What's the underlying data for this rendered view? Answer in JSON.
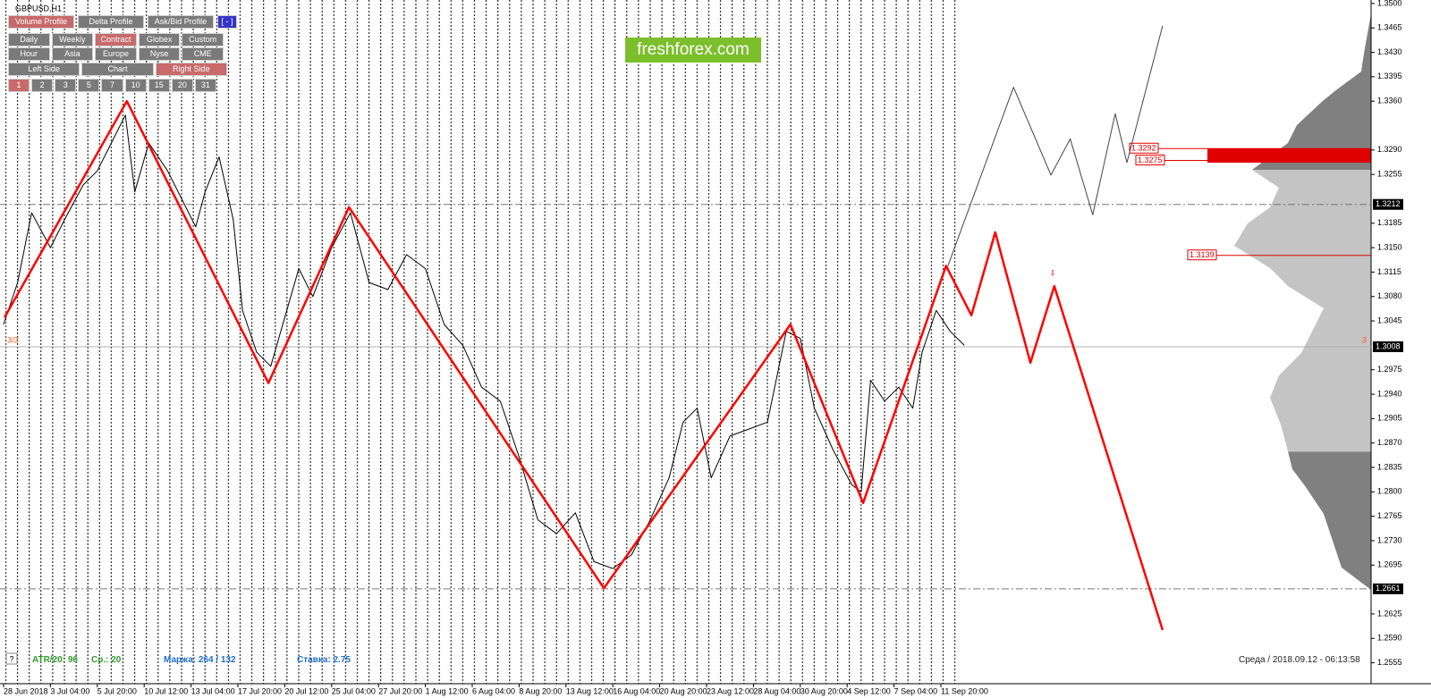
{
  "window": {
    "title": "GBPUSD,H1",
    "watermark": "freshforex.com"
  },
  "toolbar": {
    "rows": [
      [
        {
          "label": "Volume Profile",
          "active": true
        },
        {
          "label": "Delta Profile"
        },
        {
          "label": "Ask/Bid Profile"
        },
        {
          "label": "[ - ]"
        }
      ],
      [
        {
          "label": "Daily"
        },
        {
          "label": "Weekly"
        },
        {
          "label": "Contract",
          "active": true
        },
        {
          "label": "Globex"
        },
        {
          "label": "Custom"
        }
      ],
      [
        {
          "label": "Hour"
        },
        {
          "label": "Asia"
        },
        {
          "label": "Europe"
        },
        {
          "label": "Nyse"
        },
        {
          "label": "CME"
        }
      ],
      [
        {
          "label": "Left Side"
        },
        {
          "label": "Chart"
        },
        {
          "label": "Right Side",
          "active": true
        }
      ],
      [
        {
          "label": "1",
          "active": true
        },
        {
          "label": "2"
        },
        {
          "label": "3"
        },
        {
          "label": "5"
        },
        {
          "label": "7"
        },
        {
          "label": "10"
        },
        {
          "label": "15"
        },
        {
          "label": "20"
        },
        {
          "label": "31"
        }
      ]
    ]
  },
  "status": {
    "help": "?",
    "atr": "ATR/20: 96",
    "avg": "Ср.: 20",
    "margin": "Маржа: 264 / 132",
    "rate": "Ставка: 2.75",
    "clock": "Среда / 2018.09.12 - 06:13:58"
  },
  "chart_data": {
    "type": "line",
    "categories": [
      "28 Jun 2018",
      "3 Jul 04:00",
      "5 Jul 20:00",
      "10 Jul 12:00",
      "13 Jul 04:00",
      "17 Jul 20:00",
      "20 Jul 12:00",
      "25 Jul 04:00",
      "27 Jul 20:00",
      "1 Aug 12:00",
      "6 Aug 04:00",
      "8 Aug 20:00",
      "13 Aug 12:00",
      "16 Aug 04:00",
      "20 Aug 20:00",
      "23 Aug 12:00",
      "28 Aug 04:00",
      "30 Aug 20:00",
      "4 Sep 12:00",
      "7 Sep 04:00",
      "11 Sep 20:00"
    ],
    "ylim": [
      1.2525,
      1.3505
    ],
    "yticks": [
      {
        "value": 1.35,
        "label": "1.3500"
      },
      {
        "value": 1.3465,
        "label": "1.3465"
      },
      {
        "value": 1.343,
        "label": "1.3430"
      },
      {
        "value": 1.3395,
        "label": "1.3395"
      },
      {
        "value": 1.336,
        "label": "1.3360"
      },
      {
        "value": 1.329,
        "label": "1.3290"
      },
      {
        "value": 1.3255,
        "label": "1.3255"
      },
      {
        "value": 1.3185,
        "label": "1.3185"
      },
      {
        "value": 1.315,
        "label": "1.3150"
      },
      {
        "value": 1.3115,
        "label": "1.3115"
      },
      {
        "value": 1.308,
        "label": "1.3080"
      },
      {
        "value": 1.3045,
        "label": "1.3045"
      },
      {
        "value": 1.2975,
        "label": "1.2975"
      },
      {
        "value": 1.294,
        "label": "1.2940"
      },
      {
        "value": 1.2905,
        "label": "1.2905"
      },
      {
        "value": 1.287,
        "label": "1.2870"
      },
      {
        "value": 1.2835,
        "label": "1.2835"
      },
      {
        "value": 1.28,
        "label": "1.2800"
      },
      {
        "value": 1.2765,
        "label": "1.2765"
      },
      {
        "value": 1.273,
        "label": "1.2730"
      },
      {
        "value": 1.2695,
        "label": "1.2695"
      },
      {
        "value": 1.2625,
        "label": "1.2625"
      },
      {
        "value": 1.259,
        "label": "1.2590"
      },
      {
        "value": 1.2555,
        "label": "1.2555"
      }
    ],
    "levels": [
      {
        "value": 1.3212,
        "label": "1.3212"
      },
      {
        "value": 1.3008,
        "label": "1.3008"
      },
      {
        "value": 1.2661,
        "label": "1.2661"
      }
    ],
    "red_levels": [
      {
        "value": 1.3292,
        "label": "1.3292"
      },
      {
        "value": 1.3275,
        "label": "1.3275"
      },
      {
        "value": 1.3139,
        "label": "1.3139"
      }
    ],
    "markers": {
      "left": "3/3",
      "right": "3",
      "arrow": "⇩"
    },
    "series": [
      {
        "color": "#000000",
        "x": [
          0,
          0.3,
          0.6,
          1.0,
          1.3,
          1.7,
          2.0,
          2.3,
          2.6,
          2.8,
          3.1,
          3.5,
          3.8,
          4.1,
          4.3,
          4.6,
          4.9,
          5.1,
          5.4,
          5.7,
          6.0,
          6.3,
          6.6,
          7.0,
          7.4,
          7.8,
          8.2,
          8.6,
          9.0,
          9.4,
          9.8,
          10.2,
          10.6,
          11.0,
          11.4,
          11.8,
          12.2,
          12.6,
          13.0,
          13.4,
          13.8,
          14.2,
          14.5,
          14.8,
          15.1,
          15.5,
          15.9,
          16.3,
          16.7,
          17.0,
          17.3,
          17.7,
          18.1,
          18.3,
          18.5,
          18.8,
          19.1,
          19.4,
          19.6,
          19.9,
          20.2,
          20.5
        ],
        "values": [
          1.304,
          1.31,
          1.32,
          1.315,
          1.319,
          1.324,
          1.326,
          1.33,
          1.334,
          1.323,
          1.33,
          1.326,
          1.322,
          1.318,
          1.323,
          1.328,
          1.319,
          1.306,
          1.3,
          1.298,
          1.305,
          1.312,
          1.308,
          1.315,
          1.32,
          1.31,
          1.309,
          1.314,
          1.312,
          1.304,
          1.301,
          1.295,
          1.293,
          1.285,
          1.276,
          1.274,
          1.277,
          1.27,
          1.269,
          1.271,
          1.276,
          1.282,
          1.29,
          1.292,
          1.282,
          1.288,
          1.289,
          1.29,
          1.303,
          1.302,
          1.292,
          1.286,
          1.281,
          1.28,
          1.296,
          1.293,
          1.295,
          1.292,
          1.3,
          1.306,
          1.303,
          1.301
        ]
      },
      {
        "color": "#ff0000",
        "x": [
          0.02,
          2.63,
          5.65,
          7.37,
          12.81,
          16.79,
          18.34,
          20.11,
          20.65,
          21.16,
          21.91,
          22.42,
          24.73
        ],
        "values": [
          1.305,
          1.336,
          1.2956,
          1.3208,
          1.2662,
          1.304,
          1.2784,
          1.3124,
          1.3053,
          1.3172,
          1.2985,
          1.3095,
          1.2602
        ]
      },
      {
        "color": "#444444",
        "x": [
          20.15,
          21.55,
          22.35,
          22.76,
          23.24,
          23.72,
          23.97,
          24.73
        ],
        "values": [
          1.3124,
          1.338,
          1.3254,
          1.3306,
          1.3197,
          1.3342,
          1.3272,
          1.3468
        ]
      }
    ]
  }
}
